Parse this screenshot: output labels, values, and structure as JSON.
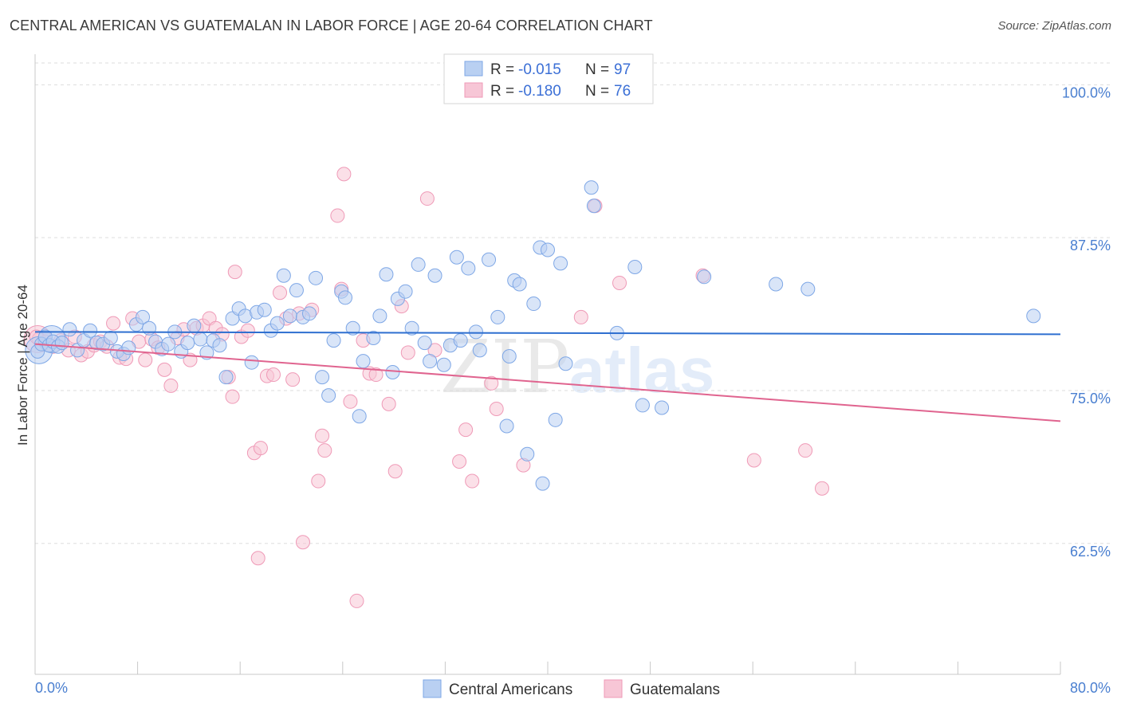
{
  "title": "CENTRAL AMERICAN VS GUATEMALAN IN LABOR FORCE | AGE 20-64 CORRELATION CHART",
  "source": "Source: ZipAtlas.com",
  "watermark": {
    "zip": "ZIP",
    "atlas": "atlas"
  },
  "legend": {
    "r_label": "R =",
    "n_label": "N =",
    "series": [
      {
        "name": "Central Americans",
        "r": "-0.015",
        "n": "97",
        "color": "#7ea7e6",
        "fill": "#b9d0f2",
        "line": "#2e6fd0"
      },
      {
        "name": "Guatemalans",
        "r": "-0.180",
        "n": "76",
        "color": "#ef9ab7",
        "fill": "#f7c6d6",
        "line": "#e0648f"
      }
    ]
  },
  "chart_data": {
    "type": "scatter",
    "ylabel": "In Labor Force | Age 20-64",
    "xlabel": "",
    "xlim": [
      0,
      80
    ],
    "ylim": [
      51.8,
      102.5
    ],
    "x_tick_labels": [
      "0.0%",
      "80.0%"
    ],
    "y_ticks": [
      100.0,
      87.5,
      75.0,
      62.5
    ],
    "y_tick_labels": [
      "100.0%",
      "87.5%",
      "75.0%",
      "62.5%"
    ],
    "x_minor_ticks": [
      0,
      8,
      16,
      24,
      32,
      40,
      48,
      56,
      64,
      72,
      80
    ],
    "grid": "horizontal-dashed",
    "series": [
      {
        "name": "Central Americans",
        "trend": {
          "x": [
            0,
            80
          ],
          "y": [
            79.8,
            79.6
          ]
        },
        "points": [
          [
            0.2,
            78.2
          ],
          [
            0.5,
            78.8
          ],
          [
            0.8,
            79.4
          ],
          [
            1.1,
            78.7
          ],
          [
            1.4,
            79.0
          ],
          [
            1.8,
            78.6
          ],
          [
            2.1,
            78.9
          ],
          [
            2.7,
            80.0
          ],
          [
            3.3,
            78.3
          ],
          [
            3.8,
            79.1
          ],
          [
            4.3,
            79.9
          ],
          [
            4.8,
            78.9
          ],
          [
            5.3,
            78.8
          ],
          [
            5.9,
            79.3
          ],
          [
            6.4,
            78.2
          ],
          [
            6.9,
            78.0
          ],
          [
            7.3,
            78.5
          ],
          [
            7.9,
            80.4
          ],
          [
            8.4,
            81.0
          ],
          [
            8.9,
            80.1
          ],
          [
            9.4,
            79.0
          ],
          [
            9.9,
            78.4
          ],
          [
            10.4,
            78.8
          ],
          [
            10.9,
            79.8
          ],
          [
            11.4,
            78.2
          ],
          [
            11.9,
            78.9
          ],
          [
            12.4,
            80.3
          ],
          [
            12.9,
            79.2
          ],
          [
            13.4,
            78.1
          ],
          [
            13.9,
            79.1
          ],
          [
            14.4,
            78.7
          ],
          [
            14.9,
            76.1
          ],
          [
            15.4,
            80.9
          ],
          [
            15.9,
            81.7
          ],
          [
            16.4,
            81.1
          ],
          [
            16.9,
            77.3
          ],
          [
            17.3,
            81.4
          ],
          [
            17.9,
            81.6
          ],
          [
            18.4,
            79.9
          ],
          [
            18.9,
            80.5
          ],
          [
            19.4,
            84.4
          ],
          [
            19.9,
            81.1
          ],
          [
            20.4,
            83.2
          ],
          [
            20.9,
            81.0
          ],
          [
            21.4,
            81.3
          ],
          [
            21.9,
            84.2
          ],
          [
            22.4,
            76.1
          ],
          [
            22.9,
            74.6
          ],
          [
            23.3,
            79.1
          ],
          [
            23.9,
            83.1
          ],
          [
            24.2,
            82.6
          ],
          [
            24.8,
            80.1
          ],
          [
            25.3,
            72.9
          ],
          [
            25.6,
            77.4
          ],
          [
            26.4,
            79.3
          ],
          [
            26.9,
            81.1
          ],
          [
            27.4,
            84.5
          ],
          [
            27.9,
            76.5
          ],
          [
            28.3,
            82.5
          ],
          [
            28.9,
            83.1
          ],
          [
            29.4,
            80.1
          ],
          [
            29.9,
            85.3
          ],
          [
            30.4,
            78.9
          ],
          [
            30.8,
            77.4
          ],
          [
            31.2,
            84.4
          ],
          [
            31.9,
            77.1
          ],
          [
            32.4,
            78.7
          ],
          [
            32.9,
            85.9
          ],
          [
            33.2,
            79.1
          ],
          [
            33.8,
            85.0
          ],
          [
            34.4,
            79.8
          ],
          [
            34.7,
            78.3
          ],
          [
            35.4,
            85.7
          ],
          [
            36.1,
            81.0
          ],
          [
            36.8,
            72.1
          ],
          [
            37.0,
            77.8
          ],
          [
            37.4,
            84.0
          ],
          [
            37.8,
            83.7
          ],
          [
            38.4,
            69.8
          ],
          [
            38.9,
            82.1
          ],
          [
            39.4,
            86.7
          ],
          [
            39.6,
            67.4
          ],
          [
            40.0,
            86.5
          ],
          [
            40.6,
            72.6
          ],
          [
            41.0,
            85.4
          ],
          [
            41.4,
            77.2
          ],
          [
            43.4,
            91.6
          ],
          [
            43.6,
            90.1
          ],
          [
            45.4,
            79.7
          ],
          [
            47.4,
            73.8
          ],
          [
            46.8,
            85.1
          ],
          [
            48.9,
            73.6
          ],
          [
            52.2,
            84.3
          ],
          [
            57.8,
            83.7
          ],
          [
            60.3,
            83.3
          ],
          [
            77.9,
            81.1
          ]
        ],
        "big_points": [
          [
            0.3,
            78.3
          ],
          [
            1.3,
            79.2
          ]
        ]
      },
      {
        "name": "Guatemalans",
        "trend": {
          "x": [
            0,
            80
          ],
          "y": [
            78.8,
            72.5
          ]
        },
        "points": [
          [
            0.3,
            79.2
          ],
          [
            0.8,
            79.0
          ],
          [
            1.4,
            78.6
          ],
          [
            2.0,
            79.1
          ],
          [
            2.6,
            78.3
          ],
          [
            3.1,
            79.4
          ],
          [
            3.6,
            77.9
          ],
          [
            4.1,
            78.2
          ],
          [
            4.6,
            78.7
          ],
          [
            5.1,
            79.0
          ],
          [
            5.6,
            78.6
          ],
          [
            6.1,
            80.5
          ],
          [
            6.6,
            77.7
          ],
          [
            7.1,
            77.6
          ],
          [
            7.6,
            80.9
          ],
          [
            8.1,
            79.0
          ],
          [
            8.6,
            77.5
          ],
          [
            9.1,
            79.2
          ],
          [
            9.6,
            78.5
          ],
          [
            10.1,
            76.7
          ],
          [
            10.6,
            75.4
          ],
          [
            11.1,
            79.3
          ],
          [
            11.6,
            80.0
          ],
          [
            12.1,
            77.5
          ],
          [
            12.6,
            80.1
          ],
          [
            13.1,
            80.3
          ],
          [
            13.6,
            80.9
          ],
          [
            14.1,
            80.1
          ],
          [
            14.6,
            79.6
          ],
          [
            15.1,
            76.1
          ],
          [
            15.4,
            74.5
          ],
          [
            15.6,
            84.7
          ],
          [
            16.1,
            79.4
          ],
          [
            16.6,
            79.9
          ],
          [
            17.1,
            69.9
          ],
          [
            17.4,
            61.3
          ],
          [
            17.6,
            70.3
          ],
          [
            18.1,
            76.2
          ],
          [
            18.6,
            76.3
          ],
          [
            19.1,
            83.0
          ],
          [
            19.6,
            80.9
          ],
          [
            20.1,
            75.9
          ],
          [
            20.6,
            81.3
          ],
          [
            20.9,
            62.6
          ],
          [
            21.6,
            81.6
          ],
          [
            22.1,
            67.6
          ],
          [
            22.4,
            71.3
          ],
          [
            22.6,
            70.1
          ],
          [
            23.6,
            89.3
          ],
          [
            23.9,
            83.3
          ],
          [
            24.1,
            92.7
          ],
          [
            24.6,
            74.1
          ],
          [
            25.1,
            57.8
          ],
          [
            25.6,
            79.1
          ],
          [
            26.1,
            76.4
          ],
          [
            26.6,
            76.3
          ],
          [
            27.6,
            73.9
          ],
          [
            28.1,
            68.4
          ],
          [
            28.6,
            81.9
          ],
          [
            29.1,
            78.1
          ],
          [
            30.6,
            90.7
          ],
          [
            31.2,
            78.3
          ],
          [
            33.1,
            69.2
          ],
          [
            33.6,
            71.8
          ],
          [
            34.1,
            67.6
          ],
          [
            35.6,
            75.6
          ],
          [
            36.0,
            73.5
          ],
          [
            38.1,
            68.9
          ],
          [
            42.6,
            81.0
          ],
          [
            45.6,
            83.8
          ],
          [
            52.1,
            84.4
          ],
          [
            56.1,
            69.3
          ],
          [
            60.1,
            70.1
          ],
          [
            61.4,
            67.0
          ],
          [
            43.7,
            90.1
          ],
          [
            0.1,
            79.4
          ]
        ],
        "big_points": [
          [
            0.2,
            79.2
          ]
        ]
      }
    ]
  }
}
